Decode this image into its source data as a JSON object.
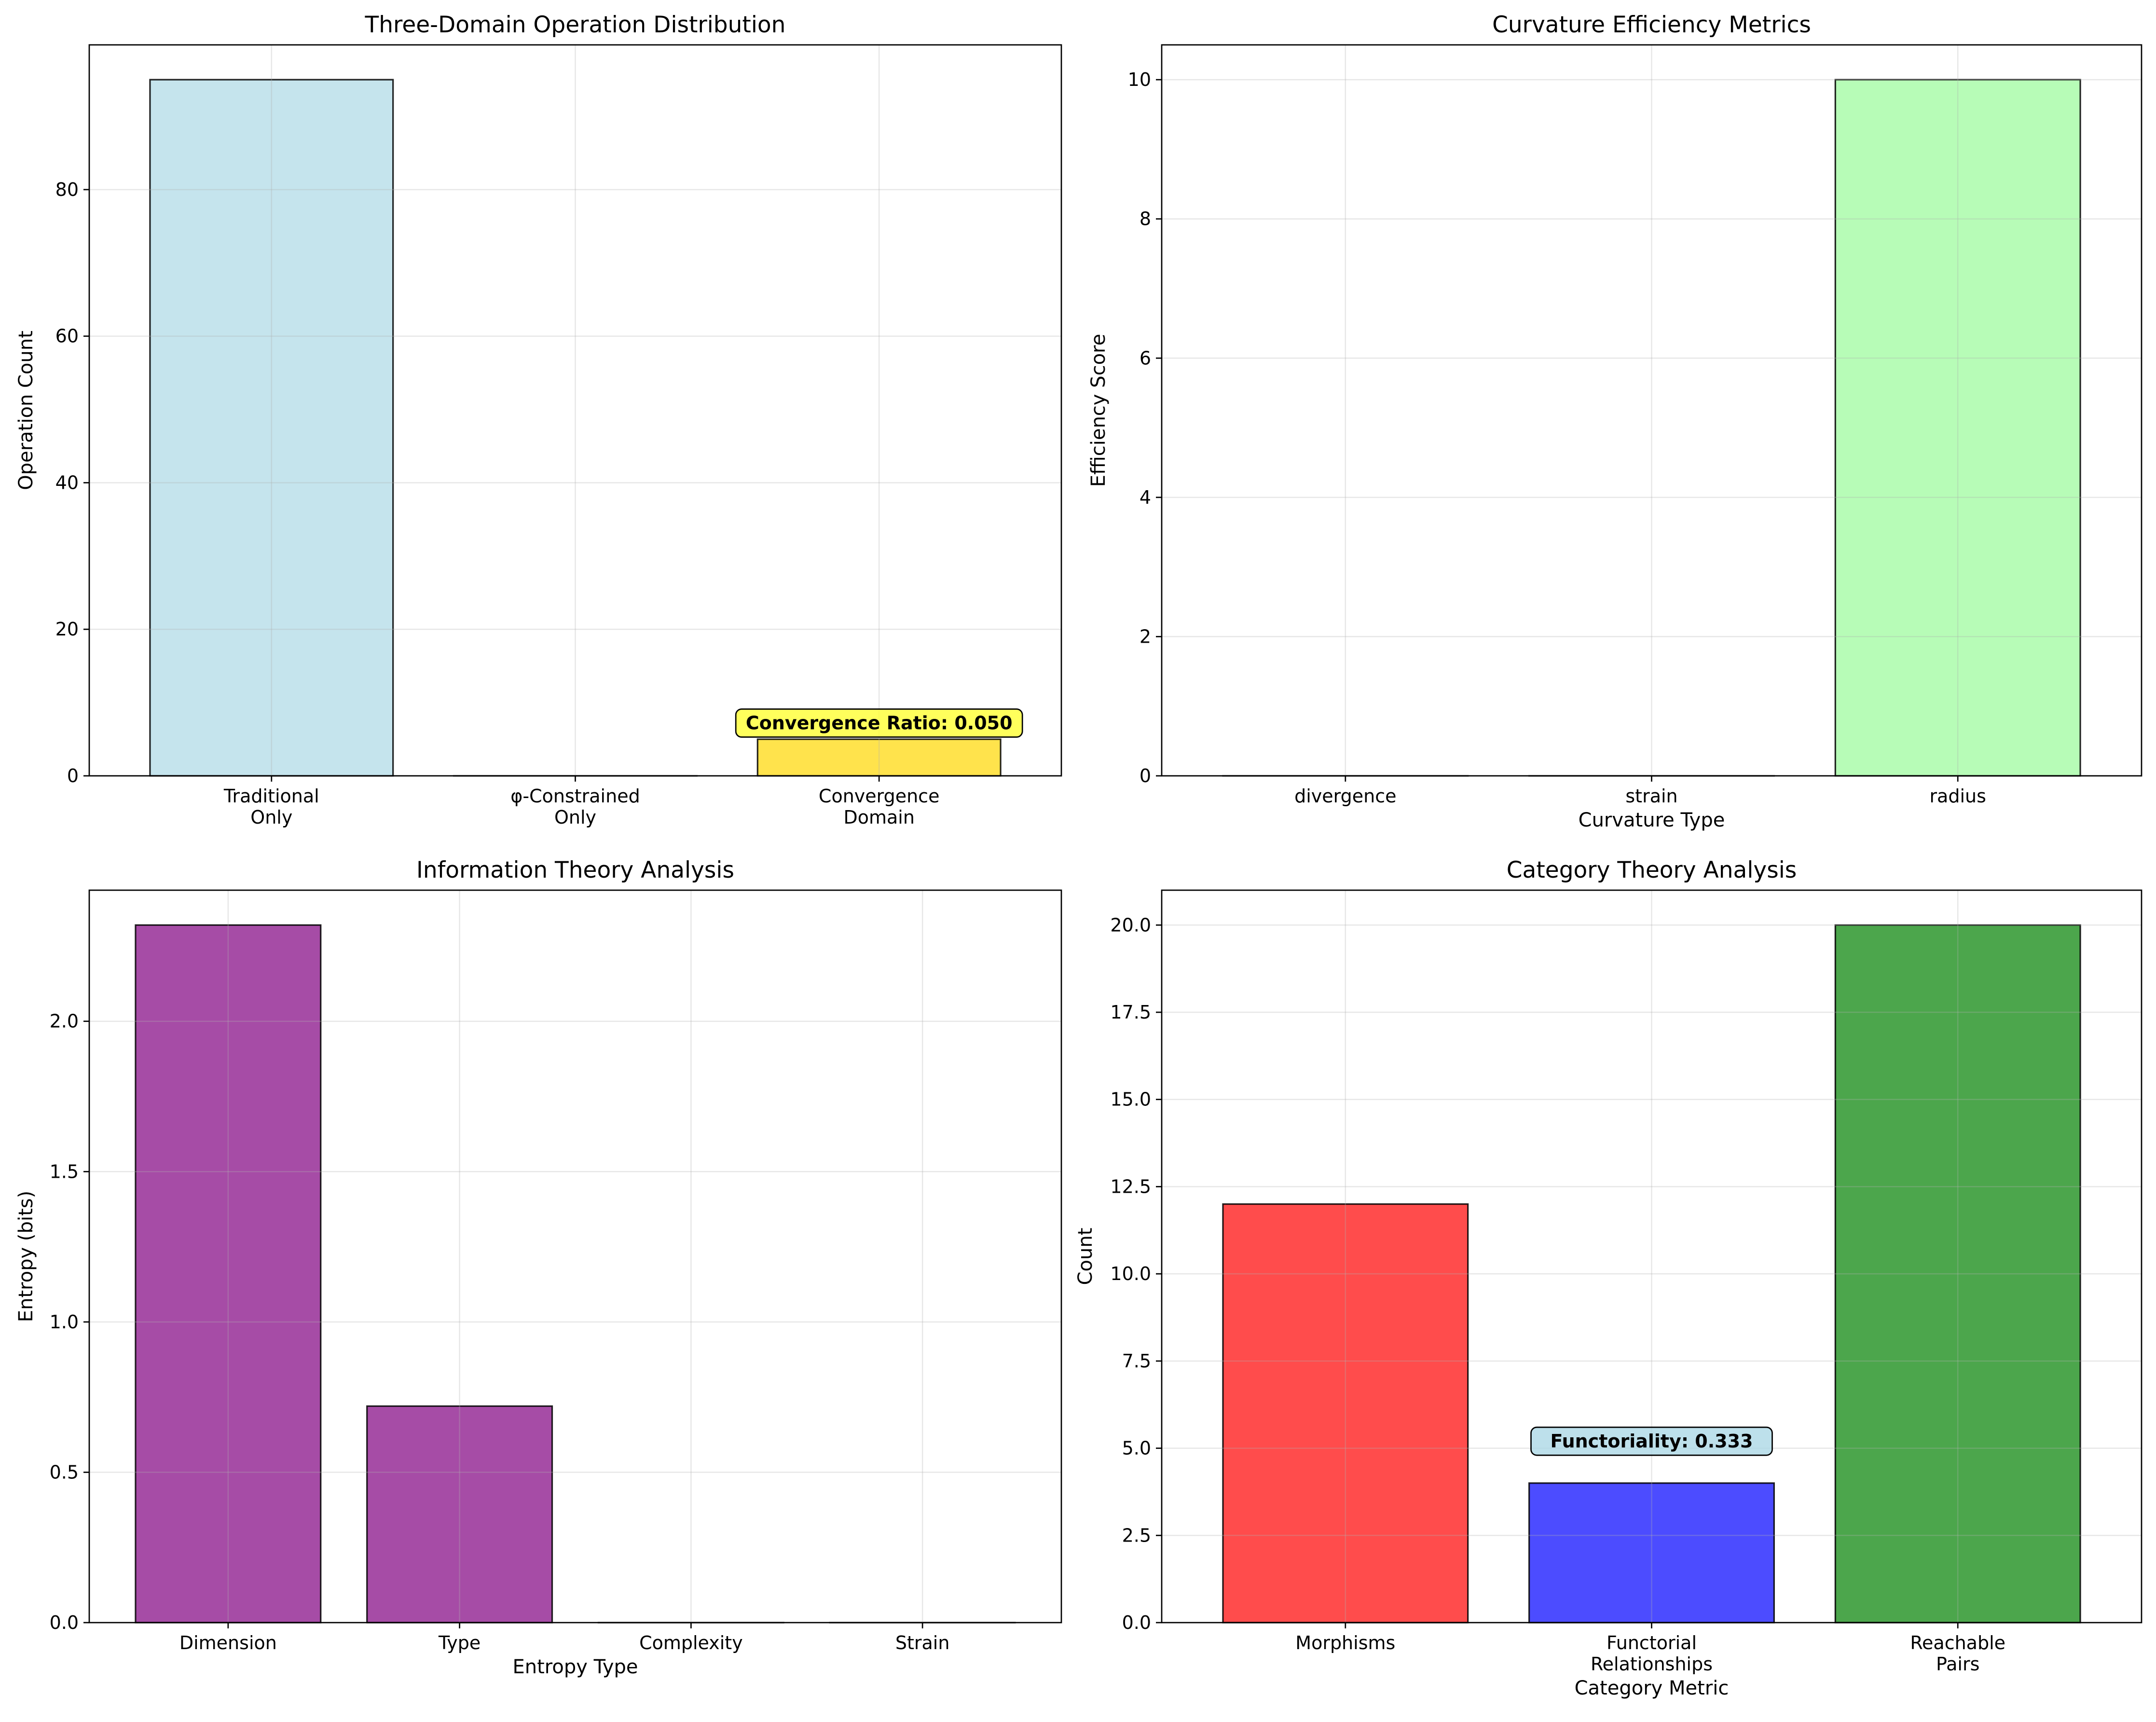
{
  "chart_data": [
    {
      "type": "bar",
      "title": "Three-Domain Operation Distribution",
      "xlabel": "",
      "ylabel": "Operation Count",
      "categories": [
        [
          "Traditional",
          "Only"
        ],
        [
          "φ-Constrained",
          "Only"
        ],
        [
          "Convergence",
          "Domain"
        ]
      ],
      "values": [
        95,
        0,
        5
      ],
      "colors": [
        "#add8e6",
        "#fff68f",
        "#ffd700"
      ],
      "ylim": [
        0,
        99.75
      ],
      "yticks": [
        0,
        20,
        40,
        60,
        80
      ],
      "annotation": {
        "text": "Convergence Ratio: 0.050",
        "category_index": 2,
        "y": 7.2,
        "box_color": "#ffff33"
      },
      "grid": true
    },
    {
      "type": "bar",
      "title": "Curvature Efficiency Metrics",
      "xlabel": "Curvature Type",
      "ylabel": "Efficiency Score",
      "categories": [
        [
          "divergence"
        ],
        [
          "strain"
        ],
        [
          "radius"
        ]
      ],
      "values": [
        0,
        0,
        10
      ],
      "colors": [
        "#ffb6c1",
        "#ffa500",
        "#98fb98"
      ],
      "ylim": [
        0,
        10.5
      ],
      "yticks": [
        0,
        2,
        4,
        6,
        8,
        10
      ],
      "grid": true
    },
    {
      "type": "bar",
      "title": "Information Theory Analysis",
      "xlabel": "Entropy Type",
      "ylabel": "Entropy (bits)",
      "categories": [
        [
          "Dimension"
        ],
        [
          "Type"
        ],
        [
          "Complexity"
        ],
        [
          "Strain"
        ]
      ],
      "values": [
        2.32,
        0.72,
        0,
        0
      ],
      "colors": [
        "#800080",
        "#800080",
        "#800080",
        "#800080"
      ],
      "ylim": [
        0,
        2.436
      ],
      "yticks": [
        0.0,
        0.5,
        1.0,
        1.5,
        2.0
      ],
      "grid": true
    },
    {
      "type": "bar",
      "title": "Category Theory Analysis",
      "xlabel": "Category Metric",
      "ylabel": "Count",
      "categories": [
        [
          "Morphisms"
        ],
        [
          "Functorial",
          "Relationships"
        ],
        [
          "Reachable",
          "Pairs"
        ]
      ],
      "values": [
        12,
        4,
        20
      ],
      "colors": [
        "#ff0000",
        "#0000ff",
        "#008000"
      ],
      "ylim": [
        0,
        21
      ],
      "yticks": [
        0.0,
        2.5,
        5.0,
        7.5,
        10.0,
        12.5,
        15.0,
        17.5,
        20.0
      ],
      "annotation": {
        "text": "Functoriality: 0.333",
        "category_index": 1,
        "y": 5.2,
        "box_color": "#add8e6"
      },
      "grid": true
    }
  ]
}
